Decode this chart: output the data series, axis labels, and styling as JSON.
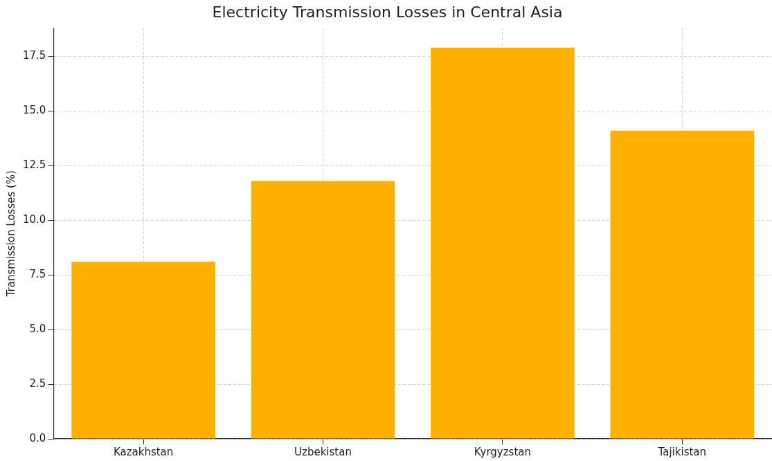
{
  "chart_data": {
    "type": "bar",
    "title": "Electricity Transmission Losses in Central Asia",
    "ylabel": "Transmission Losses (%)",
    "categories": [
      "Kazakhstan",
      "Uzbekistan",
      "Kyrgyzstan",
      "Tajikistan"
    ],
    "values": [
      8.1,
      11.8,
      17.9,
      14.1
    ],
    "color": "#ffb000",
    "ylim": [
      0,
      18.8
    ],
    "yticks": [
      {
        "value": 0,
        "label": "0.0"
      },
      {
        "value": 2.5,
        "label": "2.5"
      },
      {
        "value": 5,
        "label": "5.0"
      },
      {
        "value": 7.5,
        "label": "7.5"
      },
      {
        "value": 10,
        "label": "10.0"
      },
      {
        "value": 12.5,
        "label": "12.5"
      },
      {
        "value": 15,
        "label": "15.0"
      },
      {
        "value": 17.5,
        "label": "17.5"
      }
    ],
    "grid": true,
    "legend": false
  }
}
